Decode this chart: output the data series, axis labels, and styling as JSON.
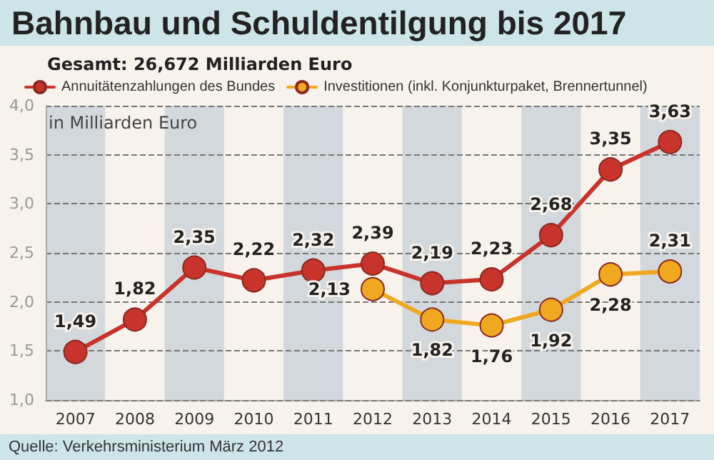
{
  "chart_data": {
    "type": "line",
    "title": "Bahnbau und Schuldentilgung bis 2017",
    "subtitle": "Gesamt: 26,672 Milliarden Euro",
    "ylabel": "in Milliarden Euro",
    "annotations": [
      "Quelle: Verkehrsministerium März 2012"
    ],
    "categories": [
      "2007",
      "2008",
      "2009",
      "2010",
      "2011",
      "2012",
      "2013",
      "2014",
      "2015",
      "2016",
      "2017"
    ],
    "series": [
      {
        "name": "Annuitätenzahlungen des Bundes",
        "color": "#c8332b",
        "values": [
          1.49,
          1.82,
          2.35,
          2.22,
          2.32,
          2.39,
          2.19,
          2.23,
          2.68,
          3.35,
          3.63
        ],
        "value_labels": [
          "1,49",
          "1,82",
          "2,35",
          "2,22",
          "2,32",
          "2,39",
          "2,19",
          "2,23",
          "2,68",
          "3,35",
          "3,63"
        ]
      },
      {
        "name": "Investitionen (inkl. Konjunkturpaket, Brennertunnel)",
        "color": "#f0a820",
        "values": [
          null,
          null,
          null,
          null,
          null,
          2.13,
          1.82,
          1.76,
          1.92,
          2.28,
          2.31
        ],
        "value_labels": [
          null,
          null,
          null,
          null,
          null,
          "2,13",
          "1,82",
          "1,76",
          "1,92",
          "2,28",
          "2,31"
        ]
      }
    ],
    "bands": [
      {
        "axis": "x",
        "from": "2007",
        "to": "2007",
        "color": "#d3d8dc"
      },
      {
        "axis": "x",
        "from": "2009",
        "to": "2009",
        "color": "#d3d8dc"
      },
      {
        "axis": "x",
        "from": "2011",
        "to": "2011",
        "color": "#d3d8dc"
      },
      {
        "axis": "x",
        "from": "2013",
        "to": "2013",
        "color": "#d3d8dc"
      },
      {
        "axis": "x",
        "from": "2015",
        "to": "2015",
        "color": "#d3d8dc"
      },
      {
        "axis": "x",
        "from": "2017",
        "to": "2017",
        "color": "#d3d8dc"
      }
    ],
    "ylim": [
      1.0,
      4.0
    ],
    "yticks": [
      {
        "value": 1.0,
        "label": "1,0"
      },
      {
        "value": 1.5,
        "label": "1,5"
      },
      {
        "value": 2.0,
        "label": "2,0"
      },
      {
        "value": 2.5,
        "label": "2,5"
      },
      {
        "value": 3.0,
        "label": "3,0"
      },
      {
        "value": 3.5,
        "label": "3,5"
      },
      {
        "value": 4.0,
        "label": "4,0"
      }
    ],
    "grid": "y",
    "legend": "top left",
    "marker": "circle",
    "line_style": "solid"
  }
}
